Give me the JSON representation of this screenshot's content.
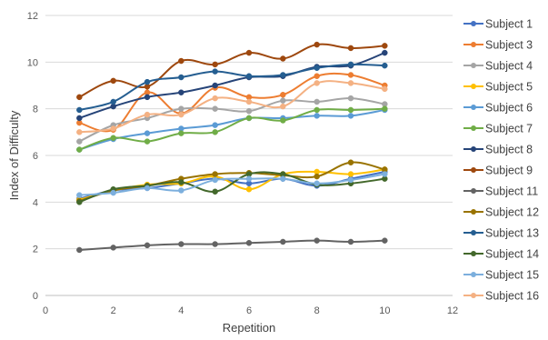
{
  "chart_data": {
    "type": "line",
    "xlabel": "Repetition",
    "ylabel": "Index of Difficulty",
    "xlim": [
      0,
      12
    ],
    "ylim": [
      0,
      12
    ],
    "xticks": [
      0,
      2,
      4,
      6,
      8,
      10,
      12
    ],
    "yticks": [
      0,
      2,
      4,
      6,
      8,
      10,
      12
    ],
    "grid": "horizontal",
    "legend_position": "right",
    "x": [
      1,
      2,
      3,
      4,
      5,
      6,
      7,
      8,
      9,
      10
    ],
    "series": [
      {
        "name": "Subject 1",
        "color": "#4472c4",
        "values": [
          4.15,
          4.5,
          4.6,
          4.8,
          5.0,
          4.8,
          5.0,
          4.7,
          5.0,
          5.3
        ]
      },
      {
        "name": "Subject 3",
        "color": "#ed7d31",
        "values": [
          7.4,
          7.1,
          8.7,
          7.8,
          8.9,
          8.5,
          8.6,
          9.4,
          9.45,
          9.0
        ]
      },
      {
        "name": "Subject 4",
        "color": "#a5a5a5",
        "values": [
          6.6,
          7.3,
          7.6,
          8.0,
          8.0,
          7.9,
          8.35,
          8.3,
          8.45,
          8.2
        ]
      },
      {
        "name": "Subject 5",
        "color": "#ffc000",
        "values": [
          4.1,
          4.5,
          4.75,
          4.8,
          5.1,
          4.55,
          5.2,
          5.3,
          5.2,
          5.4
        ]
      },
      {
        "name": "Subject 6",
        "color": "#5b9bd5",
        "values": [
          6.25,
          6.7,
          6.95,
          7.15,
          7.3,
          7.6,
          7.6,
          7.7,
          7.7,
          7.95
        ]
      },
      {
        "name": "Subject 7",
        "color": "#70ad47",
        "values": [
          6.25,
          6.75,
          6.6,
          6.95,
          7.0,
          7.6,
          7.5,
          7.95,
          7.95,
          8.0
        ]
      },
      {
        "name": "Subject 8",
        "color": "#264478",
        "values": [
          7.6,
          8.1,
          8.5,
          8.7,
          9.0,
          9.35,
          9.4,
          9.8,
          9.85,
          10.4
        ]
      },
      {
        "name": "Subject 9",
        "color": "#9e480e",
        "values": [
          8.5,
          9.2,
          8.95,
          10.05,
          9.9,
          10.4,
          10.15,
          10.75,
          10.6,
          10.7
        ]
      },
      {
        "name": "Subject 11",
        "color": "#636363",
        "values": [
          1.95,
          2.05,
          2.15,
          2.2,
          2.2,
          2.25,
          2.3,
          2.35,
          2.3,
          2.35
        ]
      },
      {
        "name": "Subject 12",
        "color": "#997300",
        "values": [
          4.05,
          4.5,
          4.7,
          5.0,
          5.2,
          5.25,
          5.15,
          5.1,
          5.7,
          5.4
        ]
      },
      {
        "name": "Subject 13",
        "color": "#255e91",
        "values": [
          7.95,
          8.3,
          9.15,
          9.35,
          9.6,
          9.4,
          9.45,
          9.75,
          9.9,
          9.85
        ]
      },
      {
        "name": "Subject 14",
        "color": "#43682b",
        "values": [
          4.0,
          4.55,
          4.7,
          4.85,
          4.45,
          5.2,
          5.2,
          4.75,
          4.8,
          5.0
        ]
      },
      {
        "name": "Subject 15",
        "color": "#7cafdd",
        "values": [
          4.3,
          4.4,
          4.6,
          4.5,
          4.95,
          5.0,
          5.0,
          4.8,
          4.95,
          5.2
        ]
      },
      {
        "name": "Subject 16",
        "color": "#f4b183",
        "values": [
          7.0,
          7.15,
          7.75,
          7.75,
          8.45,
          8.3,
          8.1,
          9.1,
          9.1,
          8.85
        ]
      }
    ]
  }
}
